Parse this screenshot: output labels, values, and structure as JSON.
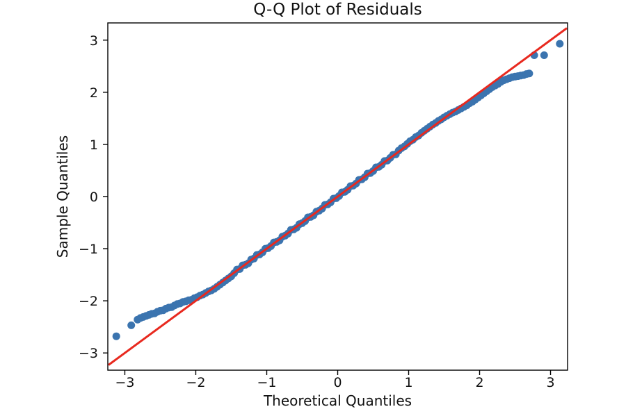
{
  "chart_data": {
    "type": "scatter",
    "title": "Q-Q Plot of Residuals",
    "xlabel": "Theoretical Quantiles",
    "ylabel": "Sample Quantiles",
    "xlim": [
      -3.24,
      3.24
    ],
    "ylim": [
      -3.33,
      3.33
    ],
    "grid": false,
    "legend": "none",
    "x_ticks": {
      "values": [
        -3,
        -2,
        -1,
        0,
        1,
        2,
        3
      ],
      "labels": [
        "−3",
        "−2",
        "−1",
        "0",
        "1",
        "2",
        "3"
      ]
    },
    "y_ticks": {
      "values": [
        -3,
        -2,
        -1,
        0,
        1,
        2,
        3
      ],
      "labels": [
        "−3",
        "−2",
        "−1",
        "0",
        "1",
        "2",
        "3"
      ]
    },
    "point_color": "#3b74af",
    "line_color": "#e8291f",
    "frame_color": "#000000",
    "marker_diameter_px": 11,
    "reference_line": {
      "x1": -3.23,
      "y1": -3.23,
      "x2": 3.23,
      "y2": 3.23
    },
    "points": [
      [
        -3.12,
        -2.68
      ],
      [
        -2.91,
        -2.47
      ],
      [
        -2.82,
        -2.36
      ],
      [
        -2.78,
        -2.33
      ],
      [
        -2.74,
        -2.31
      ],
      [
        -2.7,
        -2.29
      ],
      [
        -2.66,
        -2.27
      ],
      [
        -2.62,
        -2.25
      ],
      [
        -2.58,
        -2.24
      ],
      [
        -2.54,
        -2.21
      ],
      [
        -2.5,
        -2.19
      ],
      [
        -2.46,
        -2.18
      ],
      [
        -2.42,
        -2.15
      ],
      [
        -2.38,
        -2.13
      ],
      [
        -2.34,
        -2.12
      ],
      [
        -2.3,
        -2.09
      ],
      [
        -2.26,
        -2.06
      ],
      [
        -2.22,
        -2.05
      ],
      [
        -2.18,
        -2.02
      ],
      [
        -2.14,
        -2.01
      ],
      [
        -2.1,
        -1.99
      ],
      [
        -2.06,
        -1.98
      ],
      [
        -2.02,
        -1.95
      ],
      [
        -1.98,
        -1.93
      ],
      [
        -1.94,
        -1.9
      ],
      [
        -1.9,
        -1.88
      ],
      [
        -1.86,
        -1.85
      ],
      [
        -1.82,
        -1.82
      ],
      [
        -1.78,
        -1.8
      ],
      [
        -1.74,
        -1.77
      ],
      [
        -1.7,
        -1.73
      ],
      [
        -1.66,
        -1.69
      ],
      [
        -1.62,
        -1.65
      ],
      [
        -1.58,
        -1.61
      ],
      [
        -1.54,
        -1.57
      ],
      [
        -1.5,
        -1.53
      ],
      [
        -1.46,
        -1.47
      ],
      [
        -1.42,
        -1.4
      ],
      [
        -1.38,
        -1.39
      ],
      [
        -1.34,
        -1.32
      ],
      [
        -1.3,
        -1.31
      ],
      [
        -1.26,
        -1.28
      ],
      [
        -1.22,
        -1.21
      ],
      [
        -1.18,
        -1.19
      ],
      [
        -1.14,
        -1.12
      ],
      [
        -1.1,
        -1.11
      ],
      [
        -1.06,
        -1.07
      ],
      [
        -1.02,
        -1.0
      ],
      [
        -0.98,
        -0.99
      ],
      [
        -0.94,
        -0.95
      ],
      [
        -0.9,
        -0.88
      ],
      [
        -0.86,
        -0.87
      ],
      [
        -0.82,
        -0.84
      ],
      [
        -0.78,
        -0.77
      ],
      [
        -0.74,
        -0.75
      ],
      [
        -0.7,
        -0.71
      ],
      [
        -0.66,
        -0.64
      ],
      [
        -0.62,
        -0.63
      ],
      [
        -0.58,
        -0.6
      ],
      [
        -0.54,
        -0.53
      ],
      [
        -0.5,
        -0.51
      ],
      [
        -0.46,
        -0.47
      ],
      [
        -0.42,
        -0.4
      ],
      [
        -0.38,
        -0.39
      ],
      [
        -0.34,
        -0.36
      ],
      [
        -0.3,
        -0.29
      ],
      [
        -0.26,
        -0.27
      ],
      [
        -0.22,
        -0.23
      ],
      [
        -0.18,
        -0.16
      ],
      [
        -0.14,
        -0.15
      ],
      [
        -0.1,
        -0.11
      ],
      [
        -0.06,
        -0.04
      ],
      [
        -0.02,
        -0.03
      ],
      [
        0.02,
        0.01
      ],
      [
        0.06,
        0.08
      ],
      [
        0.1,
        0.09
      ],
      [
        0.14,
        0.13
      ],
      [
        0.18,
        0.2
      ],
      [
        0.22,
        0.21
      ],
      [
        0.26,
        0.25
      ],
      [
        0.3,
        0.32
      ],
      [
        0.34,
        0.33
      ],
      [
        0.38,
        0.37
      ],
      [
        0.42,
        0.44
      ],
      [
        0.46,
        0.45
      ],
      [
        0.5,
        0.49
      ],
      [
        0.54,
        0.56
      ],
      [
        0.58,
        0.57
      ],
      [
        0.62,
        0.61
      ],
      [
        0.66,
        0.68
      ],
      [
        0.7,
        0.69
      ],
      [
        0.74,
        0.74
      ],
      [
        0.78,
        0.8
      ],
      [
        0.82,
        0.81
      ],
      [
        0.86,
        0.88
      ],
      [
        0.9,
        0.93
      ],
      [
        0.94,
        0.96
      ],
      [
        0.98,
        1.01
      ],
      [
        1.02,
        1.06
      ],
      [
        1.06,
        1.09
      ],
      [
        1.1,
        1.14
      ],
      [
        1.14,
        1.17
      ],
      [
        1.18,
        1.22
      ],
      [
        1.22,
        1.26
      ],
      [
        1.26,
        1.3
      ],
      [
        1.3,
        1.34
      ],
      [
        1.34,
        1.38
      ],
      [
        1.38,
        1.41
      ],
      [
        1.42,
        1.45
      ],
      [
        1.46,
        1.48
      ],
      [
        1.5,
        1.52
      ],
      [
        1.54,
        1.55
      ],
      [
        1.58,
        1.58
      ],
      [
        1.62,
        1.61
      ],
      [
        1.66,
        1.63
      ],
      [
        1.7,
        1.66
      ],
      [
        1.74,
        1.69
      ],
      [
        1.78,
        1.72
      ],
      [
        1.82,
        1.75
      ],
      [
        1.86,
        1.79
      ],
      [
        1.9,
        1.82
      ],
      [
        1.94,
        1.86
      ],
      [
        1.98,
        1.9
      ],
      [
        2.02,
        1.94
      ],
      [
        2.06,
        1.98
      ],
      [
        2.1,
        2.02
      ],
      [
        2.14,
        2.06
      ],
      [
        2.18,
        2.1
      ],
      [
        2.22,
        2.13
      ],
      [
        2.26,
        2.16
      ],
      [
        2.3,
        2.2
      ],
      [
        2.34,
        2.23
      ],
      [
        2.38,
        2.25
      ],
      [
        2.42,
        2.27
      ],
      [
        2.46,
        2.29
      ],
      [
        2.5,
        2.3
      ],
      [
        2.54,
        2.31
      ],
      [
        2.58,
        2.32
      ],
      [
        2.62,
        2.33
      ],
      [
        2.66,
        2.35
      ],
      [
        2.7,
        2.36
      ],
      [
        2.77,
        2.71
      ],
      [
        2.91,
        2.71
      ],
      [
        3.13,
        2.93
      ]
    ]
  }
}
